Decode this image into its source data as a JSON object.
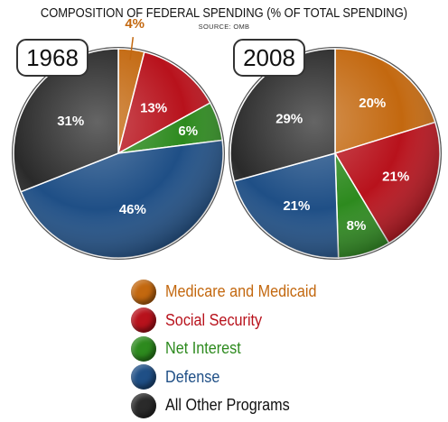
{
  "chart_data": {
    "type": "pie",
    "title": "COMPOSITION OF FEDERAL SPENDING (% OF TOTAL SPENDING)",
    "source": "SOURCE: OMB",
    "categories": [
      "Medicare and Medicaid",
      "Social Security",
      "Net Interest",
      "Defense",
      "All Other Programs"
    ],
    "colors": [
      "#c3680f",
      "#b8121c",
      "#2d8a1e",
      "#1f4f86",
      "#2a2a2a"
    ],
    "pies": [
      {
        "label": "1968",
        "values": [
          4,
          13,
          6,
          46,
          31
        ],
        "value_labels": [
          "4%",
          "13%",
          "6%",
          "46%",
          "31%"
        ]
      },
      {
        "label": "2008",
        "values": [
          20,
          21,
          8,
          21,
          29
        ],
        "value_labels": [
          "20%",
          "21%",
          "8%",
          "21%",
          "29%"
        ]
      }
    ],
    "legend": [
      "Medicare and Medicaid",
      "Social Security",
      "Net Interest",
      "Defense",
      "All Other Programs"
    ],
    "legend_placement": "bottom-center"
  }
}
